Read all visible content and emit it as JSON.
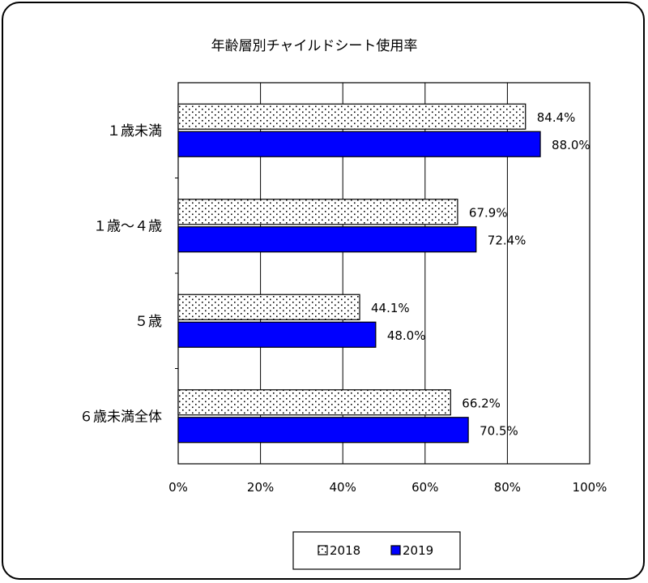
{
  "chart_data": {
    "type": "bar",
    "orientation": "horizontal",
    "title": "年齢層別チャイルドシート使用率",
    "categories": [
      "１歳未満",
      "１歳～４歳",
      "５歳",
      "６歳未満全体"
    ],
    "series": [
      {
        "name": "2018",
        "values": [
          84.4,
          67.9,
          44.1,
          66.2
        ],
        "value_labels": [
          "84.4%",
          "67.9%",
          "44.1%",
          "66.2%"
        ],
        "color": "#ffffff",
        "pattern": "dots"
      },
      {
        "name": "2019",
        "values": [
          88.0,
          72.4,
          48.0,
          70.5
        ],
        "value_labels": [
          "88.0%",
          "72.4%",
          "48.0%",
          "70.5%"
        ],
        "color": "#0000ff",
        "pattern": "solid"
      }
    ],
    "xlim": [
      0,
      100
    ],
    "xticks": [
      "0%",
      "20%",
      "40%",
      "60%",
      "80%",
      "100%"
    ],
    "grid": true,
    "legend": "bottom"
  }
}
